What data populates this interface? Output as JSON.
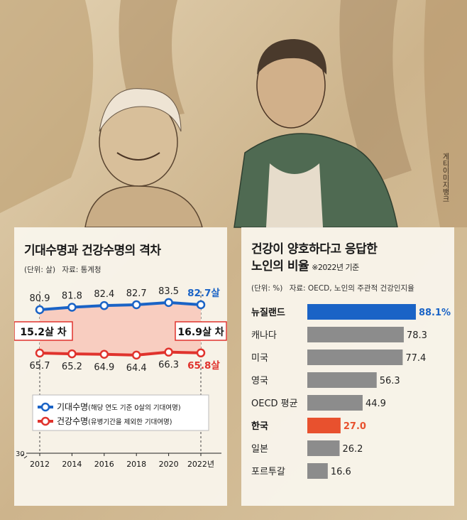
{
  "credit": "게티이미지뱅크",
  "left_chart": {
    "title": "기대수명과 건강수명의 격차",
    "unit_label": "(단위: 살)",
    "source_label": "자료: 통계청",
    "x_labels": [
      "2012",
      "2014",
      "2016",
      "2018",
      "2020",
      "2022년"
    ],
    "y_axis_tick": "30",
    "gap_start_label": "15.2살 차",
    "gap_end_label": "16.9살 차",
    "legend": [
      {
        "label": "기대수명",
        "note": "(해당 연도 기준 0살의 기대여명)",
        "color": "#1a63c6"
      },
      {
        "label": "건강수명",
        "note": "(유병기간을 제외한 기대여명)",
        "color": "#e0332d"
      }
    ],
    "life_value_labels": [
      "80.9",
      "81.8",
      "82.4",
      "82.7",
      "83.5",
      "82.7살"
    ],
    "healthy_value_labels": [
      "65.7",
      "65.2",
      "64.9",
      "64.4",
      "66.3",
      "65.8살"
    ]
  },
  "right_chart": {
    "title_line1": "건강이 양호하다고 응답한",
    "title_line2": "노인의 비율",
    "title_note": "※2022년 기준",
    "unit_label": "(단위: %)",
    "source_label": "자료: OECD, 노인의 주관적 건강인지율",
    "value_labels": [
      "88.1%",
      "78.3",
      "77.4",
      "56.3",
      "44.9",
      "27.0",
      "26.2",
      "16.6"
    ]
  },
  "chart_data": [
    {
      "type": "line",
      "title": "기대수명과 건강수명의 격차",
      "x": [
        2012,
        2014,
        2016,
        2018,
        2020,
        2022
      ],
      "series": [
        {
          "name": "기대수명",
          "values": [
            80.9,
            81.8,
            82.4,
            82.7,
            83.5,
            82.7
          ],
          "color": "#1a63c6"
        },
        {
          "name": "건강수명",
          "values": [
            65.7,
            65.2,
            64.9,
            64.4,
            66.3,
            65.8
          ],
          "color": "#e0332d"
        }
      ],
      "ylabel": "살",
      "ylim": [
        30,
        90
      ],
      "gap_fill_color": "#f8cdc0",
      "legend": "bottom-left"
    },
    {
      "type": "bar",
      "orientation": "horizontal",
      "title": "건강이 양호하다고 응답한 노인의 비율",
      "categories": [
        "뉴질랜드",
        "캐나다",
        "미국",
        "영국",
        "OECD 평균",
        "한국",
        "일본",
        "포르투갈"
      ],
      "values": [
        88.1,
        78.3,
        77.4,
        56.3,
        44.9,
        27.0,
        26.2,
        16.6
      ],
      "colors": [
        "#1a63c6",
        "#8c8c8c",
        "#8c8c8c",
        "#8c8c8c",
        "#8c8c8c",
        "#e8512e",
        "#8c8c8c",
        "#8c8c8c"
      ],
      "ylabel": "%",
      "xlim": [
        0,
        100
      ]
    }
  ]
}
